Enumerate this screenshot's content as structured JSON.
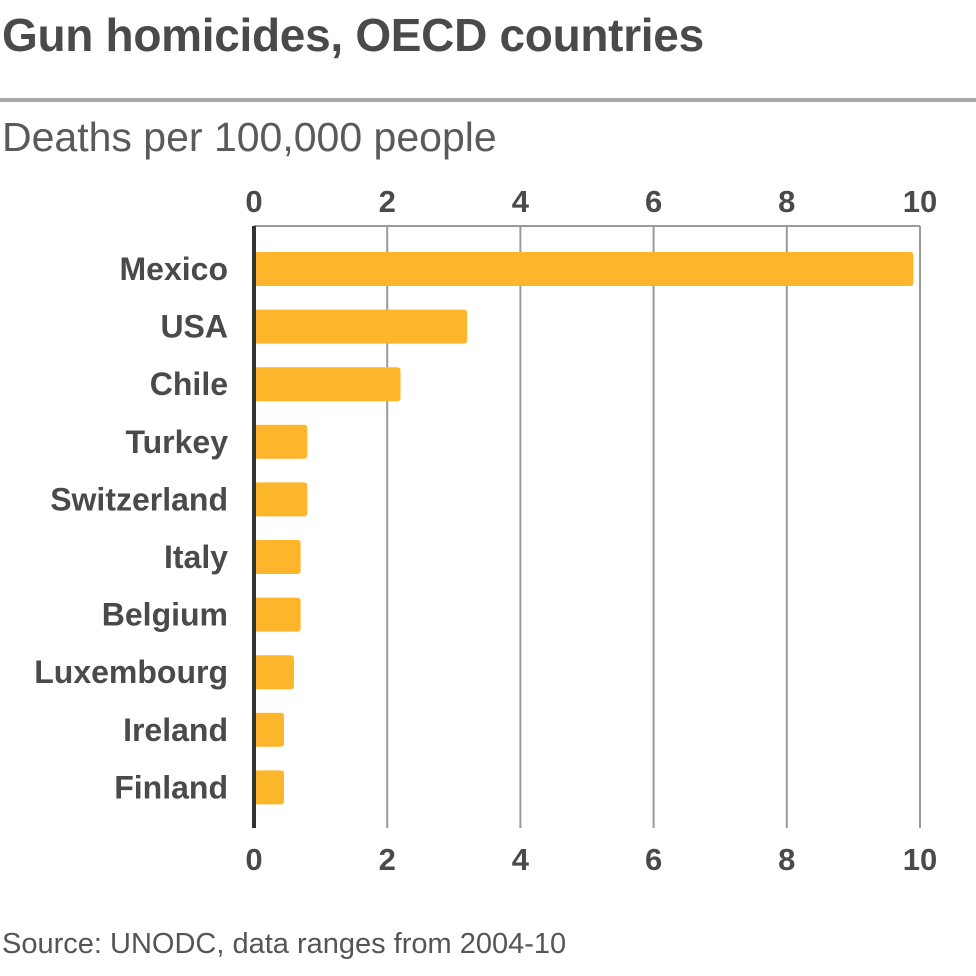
{
  "colors": {
    "bar": "#fdb52b",
    "grid": "#9a9a9a",
    "axis": "#333333",
    "text": "#4a4a4a"
  },
  "chart_data": {
    "type": "bar",
    "orientation": "horizontal",
    "title": "Gun homicides, OECD countries",
    "subtitle": "Deaths per 100,000 people",
    "source": "Source: UNODC, data ranges from 2004-10",
    "categories": [
      "Mexico",
      "USA",
      "Chile",
      "Turkey",
      "Switzerland",
      "Italy",
      "Belgium",
      "Luxembourg",
      "Ireland",
      "Finland"
    ],
    "values": [
      9.9,
      3.2,
      2.2,
      0.8,
      0.8,
      0.7,
      0.7,
      0.6,
      0.45,
      0.45
    ],
    "xlim": [
      0,
      10
    ],
    "xticks": [
      "0",
      "2",
      "4",
      "6",
      "8",
      "10"
    ],
    "grid": true,
    "tick_labels_top_and_bottom": true
  }
}
